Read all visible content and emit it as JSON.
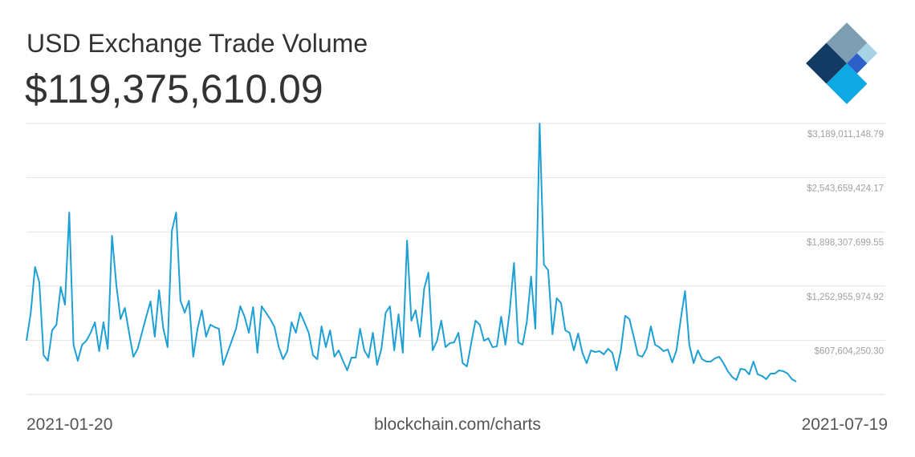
{
  "chart_data": {
    "type": "line",
    "title": "USD Exchange Trade Volume",
    "subtitle": "$119,375,610.09",
    "source": "blockchain.com/charts",
    "xlim": [
      "2021-01-20",
      "2021-07-19"
    ],
    "ylim": [
      -37747474.32,
      3189011148.79
    ],
    "yticks": [
      {
        "value": 607604250.3,
        "label": "$607,604,250.30"
      },
      {
        "value": 1252955974.92,
        "label": "$1,252,955,974.92"
      },
      {
        "value": 1898307699.55,
        "label": "$1,898,307,699.55"
      },
      {
        "value": 2543659424.17,
        "label": "$2,543,659,424.17"
      },
      {
        "value": 3189011148.79,
        "label": "$3,189,011,148.79"
      }
    ],
    "grid": true,
    "series": [
      {
        "color": "#1ea0d6",
        "values": [
          602000000,
          936000000,
          1480000000,
          1299000000,
          430000000,
          363000000,
          726000000,
          793000000,
          1241000000,
          1031000000,
          2129000000,
          554000000,
          363000000,
          554000000,
          602000000,
          697000000,
          822000000,
          478000000,
          822000000,
          506000000,
          1853000000,
          1270000000,
          860000000,
          993000000,
          697000000,
          411000000,
          506000000,
          697000000,
          888000000,
          1070000000,
          650000000,
          1203000000,
          745000000,
          525000000,
          1910000000,
          2129000000,
          1079000000,
          936000000,
          1079000000,
          411000000,
          745000000,
          965000000,
          650000000,
          793000000,
          764000000,
          745000000,
          315000000,
          459000000,
          602000000,
          745000000,
          1012000000,
          888000000,
          697000000,
          1003000000,
          459000000,
          1012000000,
          936000000,
          860000000,
          764000000,
          525000000,
          382000000,
          478000000,
          822000000,
          697000000,
          936000000,
          822000000,
          697000000,
          430000000,
          382000000,
          774000000,
          525000000,
          726000000,
          411000000,
          487000000,
          363000000,
          249000000,
          401000000,
          401000000,
          745000000,
          487000000,
          401000000,
          697000000,
          315000000,
          506000000,
          936000000,
          1012000000,
          487000000,
          917000000,
          459000000,
          1795000000,
          841000000,
          965000000,
          650000000,
          1222000000,
          1413000000,
          487000000,
          602000000,
          841000000,
          525000000,
          573000000,
          583000000,
          697000000,
          335000000,
          296000000,
          573000000,
          841000000,
          793000000,
          602000000,
          631000000,
          525000000,
          535000000,
          888000000,
          554000000,
          955000000,
          1528000000,
          583000000,
          554000000,
          822000000,
          1366000000,
          745000000,
          3189000000,
          1509000000,
          1442000000,
          678000000,
          1108000000,
          1051000000,
          726000000,
          697000000,
          487000000,
          688000000,
          459000000,
          335000000,
          487000000,
          468000000,
          478000000,
          440000000,
          506000000,
          459000000,
          249000000,
          487000000,
          898000000,
          860000000,
          650000000,
          430000000,
          411000000,
          506000000,
          774000000,
          554000000,
          525000000,
          478000000,
          497000000,
          344000000,
          487000000,
          860000000,
          1194000000,
          554000000,
          335000000,
          487000000,
          382000000,
          354000000,
          354000000,
          392000000,
          411000000,
          335000000,
          239000000,
          172000000,
          134000000,
          268000000,
          258000000,
          201000000,
          354000000,
          201000000,
          182000000,
          144000000,
          211000000,
          211000000,
          249000000,
          239000000,
          211000000,
          144000000,
          115000000
        ]
      }
    ]
  }
}
